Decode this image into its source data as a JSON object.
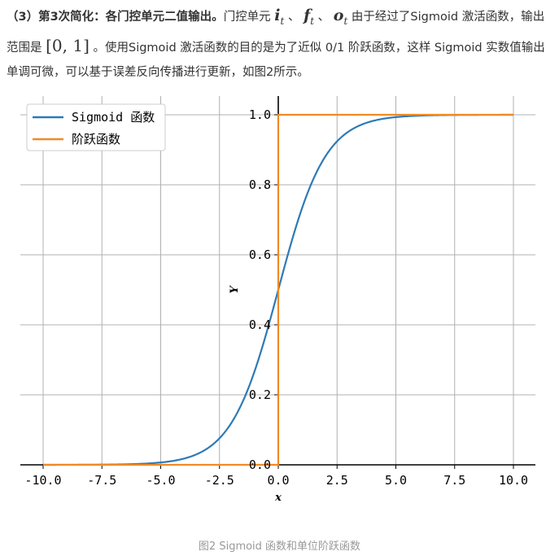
{
  "paragraph": {
    "lead_bold": "（3）第3次简化：各门控单元二值输出。",
    "text_1": "门控单元 ",
    "gate_i": "i",
    "gate_f": "f",
    "gate_o": "o",
    "subscript": "t",
    "sep_1": " 、 ",
    "sep_2": " 、 ",
    "text_2": " 由于经过了Sigmoid 激活函数，输出范围是 ",
    "interval": "[0, 1]",
    "text_3": " 。使用Sigmoid 激活函数的目的是为了近似 0/1 阶跃函数，这样 Sigmoid 实数值输出单调可微，可以基于误差反向传播进行更新，如图2所示。"
  },
  "caption": "图2  Sigmoid 函数和单位阶跃函数",
  "colors": {
    "sigmoid": "#2e7ab5",
    "step": "#f08a24",
    "grid": "#b0b0b0"
  },
  "chart_data": {
    "type": "line",
    "title": "",
    "xlabel": "x",
    "ylabel": "Y",
    "xlim": [
      -10,
      10
    ],
    "ylim": [
      0,
      1
    ],
    "grid": true,
    "legend_position": "top-left",
    "x_ticks": [
      -10,
      -7.5,
      -5,
      -2.5,
      0,
      2.5,
      5,
      7.5,
      10
    ],
    "x_tick_labels": [
      "-10.0",
      "-7.5",
      "-5.0",
      "-2.5",
      "0.0",
      "2.5",
      "5.0",
      "7.5",
      "10.0"
    ],
    "y_ticks": [
      0,
      0.2,
      0.4,
      0.6,
      0.8,
      1.0
    ],
    "y_tick_labels": [
      "0.0",
      "0.2",
      "0.4",
      "0.6",
      "0.8",
      "1.0"
    ],
    "series": [
      {
        "name": "Sigmoid 函数",
        "x": [
          -10,
          -9,
          -8,
          -7,
          -6,
          -5,
          -4,
          -3,
          -2.5,
          -2,
          -1.5,
          -1,
          -0.5,
          0,
          0.5,
          1,
          1.5,
          2,
          2.5,
          3,
          4,
          5,
          6,
          7,
          8,
          9,
          10
        ],
        "y": [
          0.0,
          0.0001,
          0.0003,
          0.0009,
          0.0025,
          0.0067,
          0.018,
          0.047,
          0.076,
          0.119,
          0.182,
          0.269,
          0.378,
          0.5,
          0.622,
          0.731,
          0.818,
          0.881,
          0.924,
          0.953,
          0.982,
          0.993,
          0.998,
          0.999,
          1.0,
          1.0,
          1.0
        ]
      },
      {
        "name": "阶跃函数",
        "x": [
          -10,
          0,
          0,
          10
        ],
        "y": [
          0,
          0,
          1,
          1
        ]
      }
    ]
  }
}
